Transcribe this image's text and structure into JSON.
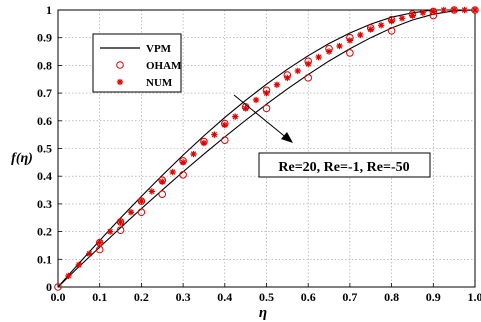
{
  "chart_data": {
    "type": "line",
    "title": "",
    "xlabel": "η",
    "ylabel": "f(η)",
    "xlim": [
      0,
      1
    ],
    "ylim": [
      0,
      1
    ],
    "grid": true,
    "legend_position": "top-left",
    "xticks": [
      "0.0",
      "0.1",
      "0.2",
      "0.3",
      "0.4",
      "0.5",
      "0.6",
      "0.7",
      "0.8",
      "0.9",
      "1.0"
    ],
    "yticks": [
      "0",
      "0.1",
      "0.2",
      "0.3",
      "0.4",
      "0.5",
      "0.6",
      "0.7",
      "0.8",
      "0.9",
      "1"
    ],
    "legend": [
      {
        "name": "VPM",
        "style": "line"
      },
      {
        "name": "OHAM",
        "style": "circle"
      },
      {
        "name": "NUM",
        "style": "star"
      }
    ],
    "annotation": "Re=20, Re=-1, Re=-50",
    "colors": {
      "line": "#000000",
      "marker": "#e00000",
      "grid": "#9a9a9a"
    },
    "series": [
      {
        "name": "VPM",
        "style": "line",
        "x": [
          0,
          0.05,
          0.1,
          0.15,
          0.2,
          0.25,
          0.3,
          0.35,
          0.4,
          0.45,
          0.5,
          0.55,
          0.6,
          0.65,
          0.7,
          0.75,
          0.8,
          0.85,
          0.9,
          0.95,
          1.0
        ],
        "y": [
          0,
          0.085,
          0.168,
          0.249,
          0.327,
          0.403,
          0.476,
          0.546,
          0.612,
          0.674,
          0.732,
          0.786,
          0.835,
          0.879,
          0.917,
          0.949,
          0.974,
          0.99,
          1.0,
          1.0,
          1.0
        ]
      },
      {
        "name": "VPM",
        "style": "line",
        "x": [
          0,
          0.05,
          0.1,
          0.15,
          0.2,
          0.25,
          0.3,
          0.35,
          0.4,
          0.45,
          0.5,
          0.55,
          0.6,
          0.65,
          0.7,
          0.75,
          0.8,
          0.85,
          0.9,
          0.95,
          1.0
        ],
        "y": [
          0,
          0.073,
          0.144,
          0.214,
          0.283,
          0.35,
          0.416,
          0.48,
          0.542,
          0.602,
          0.66,
          0.715,
          0.767,
          0.816,
          0.86,
          0.9,
          0.935,
          0.964,
          0.985,
          0.997,
          1.0
        ]
      },
      {
        "name": "OHAM",
        "style": "circle",
        "x": [
          0,
          0.1,
          0.15,
          0.2,
          0.25,
          0.3,
          0.35,
          0.4,
          0.45,
          0.5,
          0.55,
          0.6,
          0.65,
          0.7,
          0.75,
          0.8,
          0.85,
          0.9,
          0.95,
          1.0
        ],
        "y": [
          0,
          0.16,
          0.235,
          0.31,
          0.385,
          0.455,
          0.525,
          0.59,
          0.65,
          0.71,
          0.765,
          0.815,
          0.86,
          0.9,
          0.935,
          0.965,
          0.985,
          0.995,
          1.0,
          1.0
        ]
      },
      {
        "name": "OHAM",
        "style": "circle",
        "x": [
          0.1,
          0.15,
          0.2,
          0.25,
          0.3,
          0.4,
          0.5,
          0.6,
          0.7,
          0.8,
          0.9
        ],
        "y": [
          0.135,
          0.205,
          0.27,
          0.335,
          0.405,
          0.53,
          0.645,
          0.755,
          0.845,
          0.925,
          0.98
        ]
      },
      {
        "name": "NUM",
        "style": "star",
        "x": [
          0.025,
          0.05,
          0.075,
          0.1,
          0.125,
          0.15,
          0.175,
          0.2,
          0.225,
          0.25,
          0.275,
          0.3,
          0.325,
          0.35,
          0.375,
          0.4,
          0.425,
          0.45,
          0.475,
          0.5,
          0.525,
          0.55,
          0.575,
          0.6,
          0.625,
          0.65,
          0.675,
          0.7,
          0.725,
          0.75,
          0.775,
          0.8,
          0.825,
          0.85,
          0.875,
          0.9,
          0.925,
          0.95,
          0.975,
          1.0
        ],
        "y": [
          0.04,
          0.08,
          0.12,
          0.16,
          0.2,
          0.235,
          0.27,
          0.31,
          0.345,
          0.38,
          0.415,
          0.45,
          0.48,
          0.52,
          0.55,
          0.585,
          0.615,
          0.645,
          0.675,
          0.7,
          0.73,
          0.755,
          0.78,
          0.805,
          0.83,
          0.85,
          0.87,
          0.89,
          0.91,
          0.93,
          0.945,
          0.96,
          0.97,
          0.98,
          0.99,
          0.995,
          1.0,
          1.0,
          1.0,
          1.0
        ]
      }
    ]
  }
}
